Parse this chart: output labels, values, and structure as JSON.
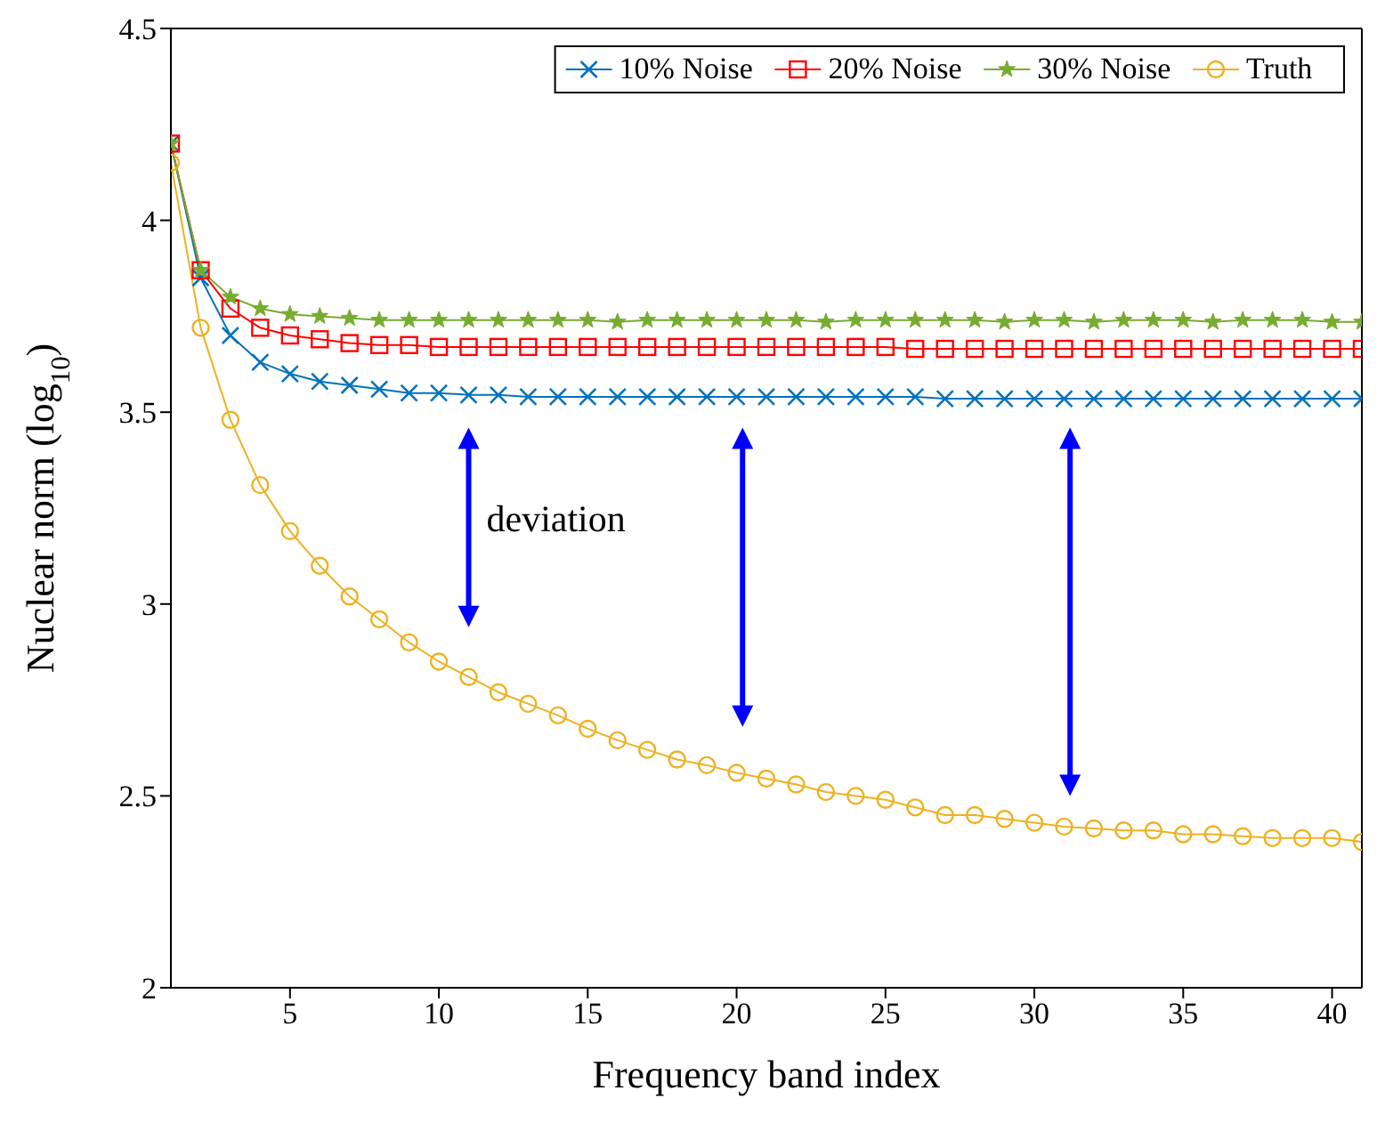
{
  "chart_data": {
    "type": "line",
    "xlabel": "Frequency band index",
    "ylabel": "Nuclear norm (log$_{10}$)",
    "x": [
      1,
      2,
      3,
      4,
      5,
      6,
      7,
      8,
      9,
      10,
      11,
      12,
      13,
      14,
      15,
      16,
      17,
      18,
      19,
      20,
      21,
      22,
      23,
      24,
      25,
      26,
      27,
      28,
      29,
      30,
      31,
      32,
      33,
      34,
      35,
      36,
      37,
      38,
      39,
      40,
      41
    ],
    "series": [
      {
        "name": "10% Noise",
        "color": "#0072bd",
        "marker": "cross",
        "values": [
          4.2,
          3.85,
          3.7,
          3.63,
          3.6,
          3.58,
          3.57,
          3.56,
          3.55,
          3.55,
          3.545,
          3.545,
          3.54,
          3.54,
          3.54,
          3.54,
          3.54,
          3.54,
          3.54,
          3.54,
          3.54,
          3.54,
          3.54,
          3.54,
          3.54,
          3.54,
          3.535,
          3.535,
          3.535,
          3.535,
          3.535,
          3.535,
          3.535,
          3.535,
          3.535,
          3.535,
          3.535,
          3.535,
          3.535,
          3.535,
          3.535
        ]
      },
      {
        "name": "20% Noise",
        "color": "#ff0000",
        "marker": "square",
        "values": [
          4.2,
          3.87,
          3.77,
          3.72,
          3.7,
          3.69,
          3.68,
          3.675,
          3.675,
          3.67,
          3.67,
          3.67,
          3.67,
          3.67,
          3.67,
          3.67,
          3.67,
          3.67,
          3.67,
          3.67,
          3.67,
          3.67,
          3.67,
          3.67,
          3.67,
          3.665,
          3.665,
          3.665,
          3.665,
          3.665,
          3.665,
          3.665,
          3.665,
          3.665,
          3.665,
          3.665,
          3.665,
          3.665,
          3.665,
          3.665,
          3.665
        ]
      },
      {
        "name": "30% Noise",
        "color": "#77ac30",
        "marker": "star",
        "values": [
          4.2,
          3.87,
          3.8,
          3.77,
          3.755,
          3.75,
          3.745,
          3.74,
          3.74,
          3.74,
          3.74,
          3.74,
          3.74,
          3.74,
          3.74,
          3.735,
          3.74,
          3.74,
          3.74,
          3.74,
          3.74,
          3.74,
          3.735,
          3.74,
          3.74,
          3.74,
          3.74,
          3.74,
          3.735,
          3.74,
          3.74,
          3.735,
          3.74,
          3.74,
          3.74,
          3.735,
          3.74,
          3.74,
          3.74,
          3.735,
          3.735
        ]
      },
      {
        "name": "Truth",
        "color": "#edb120",
        "marker": "circle",
        "values": [
          4.15,
          3.72,
          3.48,
          3.31,
          3.19,
          3.1,
          3.02,
          2.96,
          2.9,
          2.85,
          2.81,
          2.77,
          2.74,
          2.71,
          2.675,
          2.645,
          2.62,
          2.595,
          2.58,
          2.56,
          2.545,
          2.53,
          2.51,
          2.5,
          2.49,
          2.47,
          2.45,
          2.45,
          2.44,
          2.43,
          2.42,
          2.415,
          2.41,
          2.41,
          2.4,
          2.4,
          2.395,
          2.39,
          2.39,
          2.39,
          2.38
        ]
      }
    ],
    "xlim": [
      1,
      41
    ],
    "xticks": [
      5,
      10,
      15,
      20,
      25,
      30,
      35,
      40
    ],
    "ylim": [
      2,
      4.5
    ],
    "yticks": [
      2,
      2.5,
      3,
      3.5,
      4,
      4.5
    ],
    "annotations": [
      "deviation"
    ],
    "grid": false,
    "legend": "top right",
    "line_style": "solid"
  }
}
